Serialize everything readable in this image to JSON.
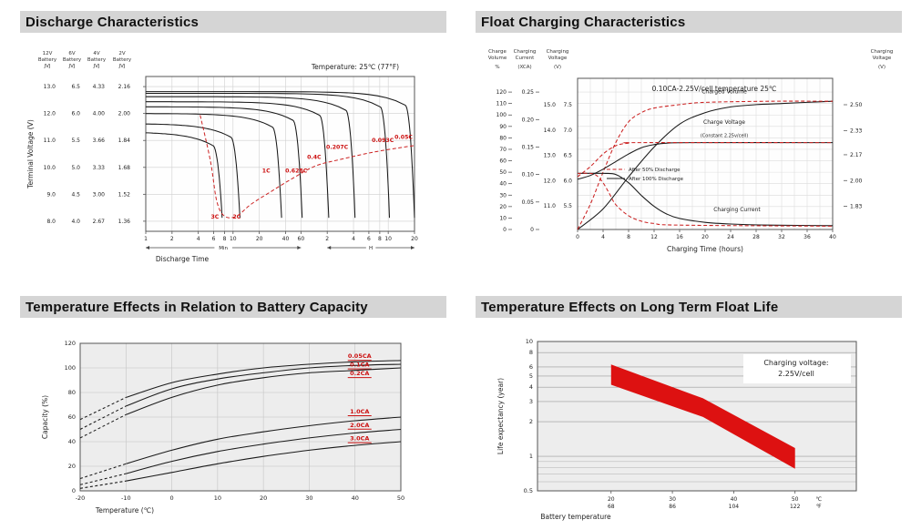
{
  "page": {
    "background": "#ffffff",
    "header_bg": "#d5d5d5",
    "header_text_color": "#111111",
    "accent_red": "#cc1111",
    "band_red": "#dd1111"
  },
  "sections": [
    {
      "title": "Discharge Characteristics"
    },
    {
      "title": "Float Charging Characteristics"
    },
    {
      "title": "Temperature Effects in Relation to Battery Capacity"
    },
    {
      "title": "Temperature Effects on Long Term Float Life"
    }
  ],
  "chart_data": [
    {
      "type": "line",
      "title": "Discharge Characteristics",
      "annotation": "Temperature: 25℃ (77°F)",
      "xlabel": "Discharge Time",
      "ylabel": "Terminal Voltage (V)",
      "x_scale": "log",
      "x_minute_ticks": [
        1,
        2,
        4,
        6,
        8,
        10,
        20,
        40,
        60
      ],
      "x_hour_ticks": [
        2,
        4,
        6,
        8,
        10,
        20
      ],
      "x_segment_labels": [
        "Min",
        "H"
      ],
      "voltage_columns": [
        {
          "header": "12V Battery JVJ",
          "ticks": [
            "13.0",
            "12.0",
            "11.0",
            "10.0",
            "9.0",
            "8.0"
          ]
        },
        {
          "header": "6V Battery JVJ",
          "ticks": [
            "6.5",
            "6.0",
            "5.5",
            "5.0",
            "4.5",
            "4.0"
          ]
        },
        {
          "header": "4V Battery JVJ",
          "ticks": [
            "4.33",
            "4.00",
            "3.66",
            "3.33",
            "3.00",
            "2.67"
          ]
        },
        {
          "header": "2V Battery JVJ",
          "ticks": [
            "2.16",
            "2.00",
            "1.84",
            "1.68",
            "1.52",
            "1.36"
          ]
        }
      ],
      "cell_v_ticks": [
        2.16,
        2.0,
        1.84,
        1.68,
        1.52,
        1.36
      ],
      "curves": [
        {
          "label": "0.05C",
          "start_v": 2.13,
          "end_min": 1200,
          "label_at": [
            900,
            1.85
          ]
        },
        {
          "label": "0.093C",
          "start_v": 2.12,
          "end_min": 620,
          "label_at": [
            520,
            1.83
          ]
        },
        {
          "label": "0.207C",
          "start_v": 2.1,
          "end_min": 250,
          "label_at": [
            156,
            1.79
          ]
        },
        {
          "label": "0.4C",
          "start_v": 2.07,
          "end_min": 125,
          "label_at": [
            85,
            1.73
          ]
        },
        {
          "label": "0.628C",
          "start_v": 2.04,
          "end_min": 62,
          "label_at": [
            53,
            1.65
          ]
        },
        {
          "label": "1C",
          "start_v": 2.0,
          "end_min": 36,
          "label_at": [
            24,
            1.65
          ]
        },
        {
          "label": "2C",
          "start_v": 1.94,
          "end_min": 12,
          "label_at": [
            11,
            1.376
          ]
        },
        {
          "label": "3C",
          "start_v": 1.89,
          "end_min": 7.5,
          "label_at": [
            6.2,
            1.376
          ]
        }
      ],
      "cutoff_curve": [
        [
          4.2,
          1.99
        ],
        [
          5.5,
          1.72
        ],
        [
          6.5,
          1.48
        ],
        [
          8,
          1.39
        ],
        [
          11,
          1.39
        ],
        [
          16,
          1.46
        ],
        [
          28,
          1.54
        ],
        [
          50,
          1.62
        ],
        [
          90,
          1.69
        ],
        [
          180,
          1.73
        ],
        [
          400,
          1.77
        ],
        [
          900,
          1.8
        ],
        [
          1200,
          1.81
        ]
      ]
    },
    {
      "type": "line",
      "title": "Float Charging Characteristics",
      "annotation": "0.10CA-2.25V/cell  temperature 25℃",
      "xlabel": "Charging Time (hours)",
      "x_ticks": [
        0,
        4,
        8,
        12,
        16,
        20,
        24,
        28,
        32,
        36,
        40
      ],
      "left_axes": {
        "volume": {
          "header": "Charge Volume",
          "unit": "%",
          "ticks": [
            "120",
            "110",
            "100",
            "90",
            "80",
            "70",
            "60",
            "50",
            "40",
            "30",
            "20",
            "10",
            "0"
          ],
          "range": [
            0,
            132
          ]
        },
        "current": {
          "header": "Charging Current",
          "unit": "(XCA)",
          "ticks": [
            "0.25",
            "0.20",
            "0.15",
            "0.10",
            "0.05",
            "0"
          ],
          "range": [
            0,
            0.275
          ]
        },
        "voltage": {
          "header": "Charging Voltage",
          "unit": "(V)",
          "ticks_12v": [
            "15.0",
            "14.0",
            "13.0",
            "12.0",
            "11.0"
          ],
          "ticks_6v": [
            "7.5",
            "7.0",
            "6.5",
            "6.0",
            "5.5"
          ]
        }
      },
      "right_axis": {
        "header": "Charging Voltage",
        "unit": "(V)",
        "ticks": [
          "2.50",
          "2.33",
          "2.17",
          "2.00",
          "1.83"
        ]
      },
      "legend": [
        {
          "label": "After  50% Discharge",
          "style": "dashed-red"
        },
        {
          "label": "After 100% Discharge",
          "style": "solid-black"
        }
      ],
      "curve_labels": [
        {
          "text": "Charged Volume",
          "axis": "volume",
          "at": [
            23,
            119
          ]
        },
        {
          "text": "Charge Voltage",
          "axis": "voltage",
          "at": [
            23,
            14.25
          ]
        },
        {
          "text": "(Constant 2.25v/cell)",
          "axis": "voltage",
          "at": [
            23,
            13.72
          ]
        },
        {
          "text": "Charging Current",
          "axis": "current",
          "at": [
            25,
            0.033
          ]
        }
      ],
      "series": [
        {
          "name": "charged-volume-after-100",
          "axis": "volume",
          "style": "solid",
          "points": [
            [
              0,
              0
            ],
            [
              4,
              18
            ],
            [
              8,
              46
            ],
            [
              12,
              72
            ],
            [
              16,
              92
            ],
            [
              20,
              102
            ],
            [
              24,
              107
            ],
            [
              28,
              109
            ],
            [
              32,
              110
            ],
            [
              36,
              111
            ],
            [
              40,
              112
            ]
          ]
        },
        {
          "name": "charged-volume-after-50",
          "axis": "volume",
          "style": "dashed",
          "points": [
            [
              0,
              0
            ],
            [
              2,
              22
            ],
            [
              4,
              50
            ],
            [
              6,
              76
            ],
            [
              8,
              94
            ],
            [
              10,
              102
            ],
            [
              12,
              106
            ],
            [
              16,
              109
            ],
            [
              20,
              111
            ],
            [
              30,
              112
            ],
            [
              40,
              112
            ]
          ]
        },
        {
          "name": "charge-voltage-after-100",
          "axis": "voltage",
          "style": "solid",
          "points": [
            [
              0,
              12.05
            ],
            [
              2,
              12.2
            ],
            [
              4,
              12.45
            ],
            [
              6,
              12.75
            ],
            [
              8,
              13.05
            ],
            [
              10,
              13.3
            ],
            [
              12,
              13.42
            ],
            [
              14,
              13.48
            ],
            [
              18,
              13.5
            ],
            [
              40,
              13.5
            ]
          ]
        },
        {
          "name": "charge-voltage-after-50",
          "axis": "voltage",
          "style": "dashed",
          "points": [
            [
              0,
              12.15
            ],
            [
              2,
              12.55
            ],
            [
              4,
              13.05
            ],
            [
              6,
              13.38
            ],
            [
              8,
              13.48
            ],
            [
              10,
              13.5
            ],
            [
              40,
              13.5
            ]
          ]
        },
        {
          "name": "charging-current-after-100",
          "axis": "current",
          "style": "solid",
          "points": [
            [
              0,
              0.102
            ],
            [
              4,
              0.102
            ],
            [
              6,
              0.1
            ],
            [
              8,
              0.085
            ],
            [
              10,
              0.062
            ],
            [
              12,
              0.042
            ],
            [
              14,
              0.028
            ],
            [
              16,
              0.02
            ],
            [
              20,
              0.013
            ],
            [
              24,
              0.01
            ],
            [
              30,
              0.008
            ],
            [
              40,
              0.007
            ]
          ]
        },
        {
          "name": "charging-current-after-50",
          "axis": "current",
          "style": "dashed",
          "points": [
            [
              0,
              0.102
            ],
            [
              2,
              0.102
            ],
            [
              3,
              0.098
            ],
            [
              4,
              0.085
            ],
            [
              5,
              0.065
            ],
            [
              6,
              0.045
            ],
            [
              8,
              0.025
            ],
            [
              10,
              0.015
            ],
            [
              12,
              0.011
            ],
            [
              16,
              0.008
            ],
            [
              40,
              0.006
            ]
          ]
        }
      ]
    },
    {
      "type": "line",
      "title": "Temperature Effects in Relation to Battery Capacity",
      "xlabel": "Temperature (℃)",
      "ylabel": "Capacity (%)",
      "x_ticks": [
        -20,
        -10,
        0,
        10,
        20,
        30,
        40,
        50
      ],
      "y_ticks": [
        0,
        20,
        40,
        60,
        80,
        100,
        120
      ],
      "ylim": [
        0,
        120
      ],
      "dashed_below_c": -10,
      "series": [
        {
          "label": "0.05CA",
          "values": [
            58,
            76,
            88,
            95,
            100,
            103,
            105,
            106
          ],
          "label_at": [
            41,
            108
          ]
        },
        {
          "label": "0.1CA",
          "values": [
            50,
            69,
            83,
            91,
            96,
            100,
            102,
            103
          ],
          "label_at": [
            41,
            101
          ]
        },
        {
          "label": "0.2CA",
          "values": [
            43,
            62,
            76,
            86,
            92,
            96,
            98,
            100
          ],
          "label_at": [
            41,
            94
          ]
        },
        {
          "label": "1.0CA",
          "values": [
            10,
            22,
            33,
            42,
            48,
            53,
            57,
            60
          ],
          "label_at": [
            41,
            63
          ]
        },
        {
          "label": "2.0CA",
          "values": [
            5,
            14,
            24,
            32,
            38,
            43,
            47,
            50
          ],
          "label_at": [
            41,
            52
          ]
        },
        {
          "label": "3.0CA",
          "values": [
            2,
            8,
            15,
            22,
            28,
            33,
            37,
            40
          ],
          "label_at": [
            41,
            41
          ]
        }
      ]
    },
    {
      "type": "band",
      "title": "Temperature Effects on Long Term Float Life",
      "xlabel": "Battery temperature",
      "ylabel": "Life expectancy (year)",
      "annotation_lines": [
        "Charging voltage:",
        "2.25V/cell"
      ],
      "y_ticks": [
        "10",
        "8",
        "6",
        "5",
        "4",
        "3",
        "2",
        "1",
        "0.5"
      ],
      "y_minor_ticks": [
        0.9,
        0.8,
        0.7,
        0.6
      ],
      "ylim_log": [
        0.5,
        10
      ],
      "xlim": [
        8,
        60
      ],
      "x_ticks": [
        {
          "c": "20",
          "f": "68"
        },
        {
          "c": "30",
          "f": "86"
        },
        {
          "c": "40",
          "f": "104"
        },
        {
          "c": "50",
          "f": "122"
        }
      ],
      "x_unit_c": "℃",
      "x_unit_f": "℉",
      "band_top": [
        [
          20,
          6.3
        ],
        [
          35,
          3.2
        ],
        [
          50,
          1.18
        ]
      ],
      "band_bottom": [
        [
          20,
          4.2
        ],
        [
          35,
          2.2
        ],
        [
          50,
          0.78
        ]
      ]
    }
  ]
}
